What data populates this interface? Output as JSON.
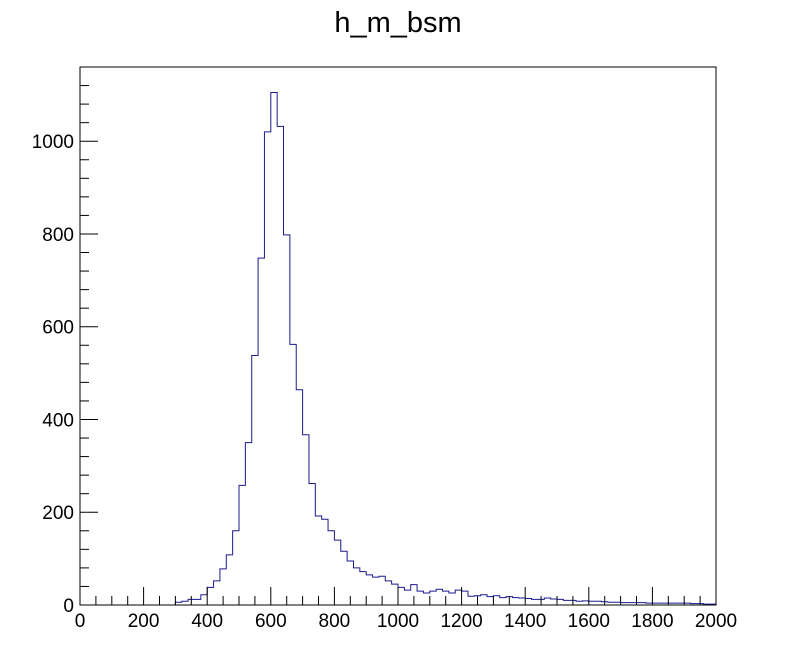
{
  "chart_data": {
    "type": "histogram",
    "title": "h_m_bsm",
    "xlabel": "",
    "ylabel": "",
    "xlim": [
      0,
      2000
    ],
    "ylim": [
      0,
      1160
    ],
    "grid": false,
    "line_color": "#1a1a8c",
    "x_ticks": [
      0,
      200,
      400,
      600,
      800,
      1000,
      1200,
      1400,
      1600,
      1800,
      2000
    ],
    "x_tick_labels": [
      "0",
      "200",
      "400",
      "600",
      "800",
      "1000",
      "1200",
      "1400",
      "1600",
      "1800",
      "2000"
    ],
    "y_ticks": [
      0,
      200,
      400,
      600,
      800,
      1000
    ],
    "y_tick_labels": [
      "0",
      "200",
      "400",
      "600",
      "800",
      "1000"
    ],
    "bin_width": 20,
    "bin_start": 0,
    "counts": [
      0,
      0,
      0,
      0,
      0,
      0,
      0,
      0,
      0,
      0,
      0,
      0,
      0,
      0,
      0,
      6,
      8,
      12,
      12,
      22,
      38,
      52,
      78,
      108,
      160,
      258,
      350,
      538,
      748,
      1020,
      1105,
      1032,
      798,
      562,
      464,
      367,
      262,
      192,
      185,
      160,
      140,
      116,
      95,
      80,
      72,
      65,
      60,
      62,
      52,
      45,
      38,
      32,
      44,
      30,
      26,
      30,
      34,
      30,
      26,
      32,
      30,
      19,
      20,
      22,
      18,
      20,
      16,
      18,
      16,
      15,
      14,
      12,
      12,
      15,
      13,
      12,
      10,
      10,
      8,
      9,
      8,
      8,
      7,
      6,
      6,
      5,
      5,
      5,
      5,
      4,
      4,
      4,
      4,
      4,
      4,
      4,
      3,
      3,
      2,
      2
    ]
  }
}
